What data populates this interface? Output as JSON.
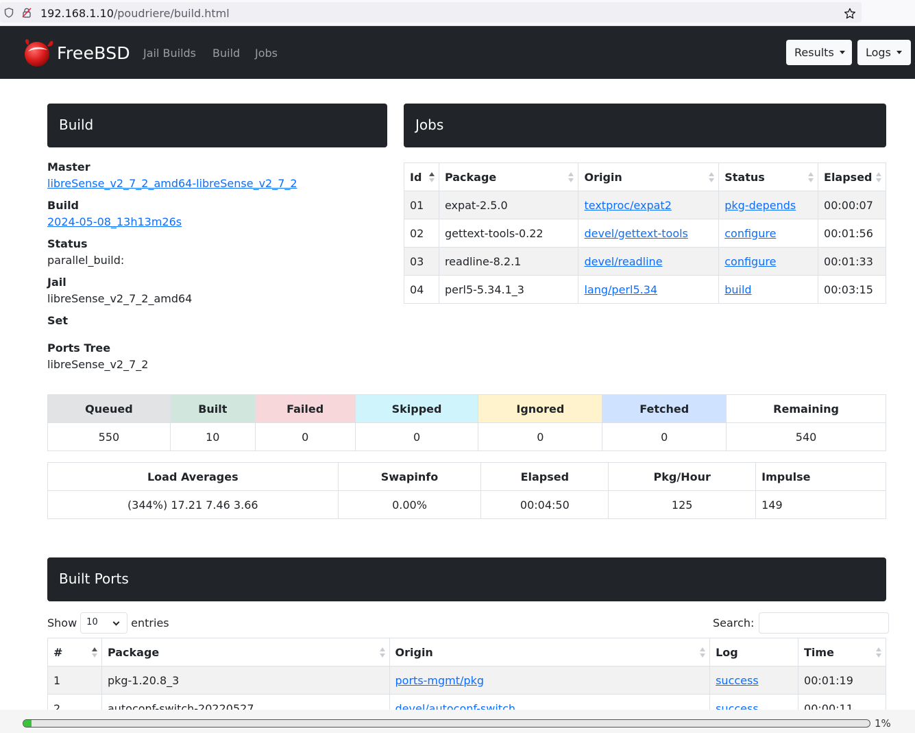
{
  "browser": {
    "url_host": "192.168.1.10",
    "url_path": "/poudriere/build.html"
  },
  "navbar": {
    "brand": "FreeBSD",
    "links": [
      "Jail Builds",
      "Build",
      "Jobs"
    ],
    "results_label": "Results",
    "logs_label": "Logs"
  },
  "build": {
    "header": "Build",
    "master_label": "Master",
    "master_value": "libreSense_v2_7_2_amd64-libreSense_v2_7_2",
    "build_label": "Build",
    "build_value": "2024-05-08_13h13m26s",
    "status_label": "Status",
    "status_value": "parallel_build:",
    "jail_label": "Jail",
    "jail_value": "libreSense_v2_7_2_amd64",
    "set_label": "Set",
    "ports_tree_label": "Ports Tree",
    "ports_tree_value": "libreSense_v2_7_2"
  },
  "jobs": {
    "header": "Jobs",
    "columns": [
      "Id",
      "Package",
      "Origin",
      "Status",
      "Elapsed"
    ],
    "rows": [
      {
        "id": "01",
        "package": "expat-2.5.0",
        "origin": "textproc/expat2",
        "status": "pkg-depends",
        "elapsed": "00:00:07"
      },
      {
        "id": "02",
        "package": "gettext-tools-0.22",
        "origin": "devel/gettext-tools",
        "status": "configure",
        "elapsed": "00:01:56"
      },
      {
        "id": "03",
        "package": "readline-8.2.1",
        "origin": "devel/readline",
        "status": "configure",
        "elapsed": "00:01:33"
      },
      {
        "id": "04",
        "package": "perl5-5.34.1_3",
        "origin": "lang/perl5.34",
        "status": "build",
        "elapsed": "00:03:15"
      }
    ]
  },
  "stats": {
    "columns": [
      {
        "label": "Queued",
        "value": "550",
        "color": "#e2e3e5"
      },
      {
        "label": "Built",
        "value": "10",
        "color": "#d1e7dd"
      },
      {
        "label": "Failed",
        "value": "0",
        "color": "#f8d7da"
      },
      {
        "label": "Skipped",
        "value": "0",
        "color": "#cff4fc"
      },
      {
        "label": "Ignored",
        "value": "0",
        "color": "#fff3cd"
      },
      {
        "label": "Fetched",
        "value": "0",
        "color": "#cfe2ff"
      },
      {
        "label": "Remaining",
        "value": "540",
        "color": "#ffffff"
      }
    ]
  },
  "load": {
    "columns": [
      "Load Averages",
      "Swapinfo",
      "Elapsed",
      "Pkg/Hour",
      "Impulse"
    ],
    "values": [
      "(344%) 17.21 7.46 3.66",
      "0.00%",
      "00:04:50",
      "125",
      "149"
    ]
  },
  "built_ports": {
    "header": "Built Ports",
    "show_label": "Show",
    "entries_value": "10",
    "entries_label": "entries",
    "search_label": "Search:",
    "columns": [
      "#",
      "Package",
      "Origin",
      "Log",
      "Time"
    ],
    "rows": [
      {
        "num": "1",
        "package": "pkg-1.20.8_3",
        "origin": "ports-mgmt/pkg",
        "log": "success",
        "time": "00:01:19"
      },
      {
        "num": "2",
        "package": "autoconf-switch-20220527",
        "origin": "devel/autoconf-switch",
        "log": "success",
        "time": "00:00:11"
      }
    ]
  },
  "progress": {
    "percent_label": "1%",
    "fraction": 0.01
  }
}
